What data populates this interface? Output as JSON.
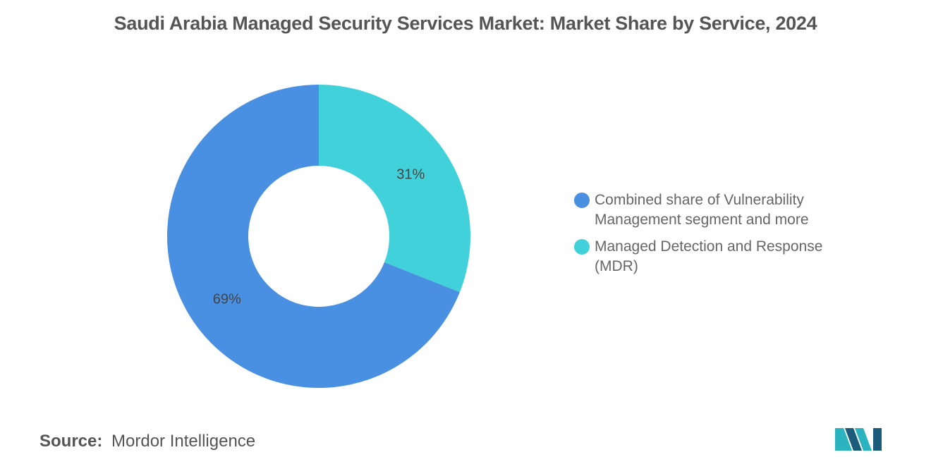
{
  "title": "Saudi Arabia Managed Security Services Market: Market Share by Service, 2024",
  "chart_data": {
    "type": "pie",
    "donut": true,
    "title": "Saudi Arabia Managed Security Services Market: Market Share by Service, 2024",
    "categories": [
      "Combined share of Vulnerability Management segment and more",
      "Managed Detection and Response (MDR)"
    ],
    "values": [
      69,
      31
    ],
    "labels": [
      "69%",
      "31%"
    ],
    "colors": [
      "#4a90e2",
      "#40d1da"
    ],
    "legend_placement": "right"
  },
  "source": {
    "label": "Source:",
    "value": "Mordor Intelligence"
  },
  "logo": {
    "icon": "mordor-intelligence-logo-icon",
    "colors": [
      "#2bb3c0",
      "#1b5c7a"
    ]
  }
}
